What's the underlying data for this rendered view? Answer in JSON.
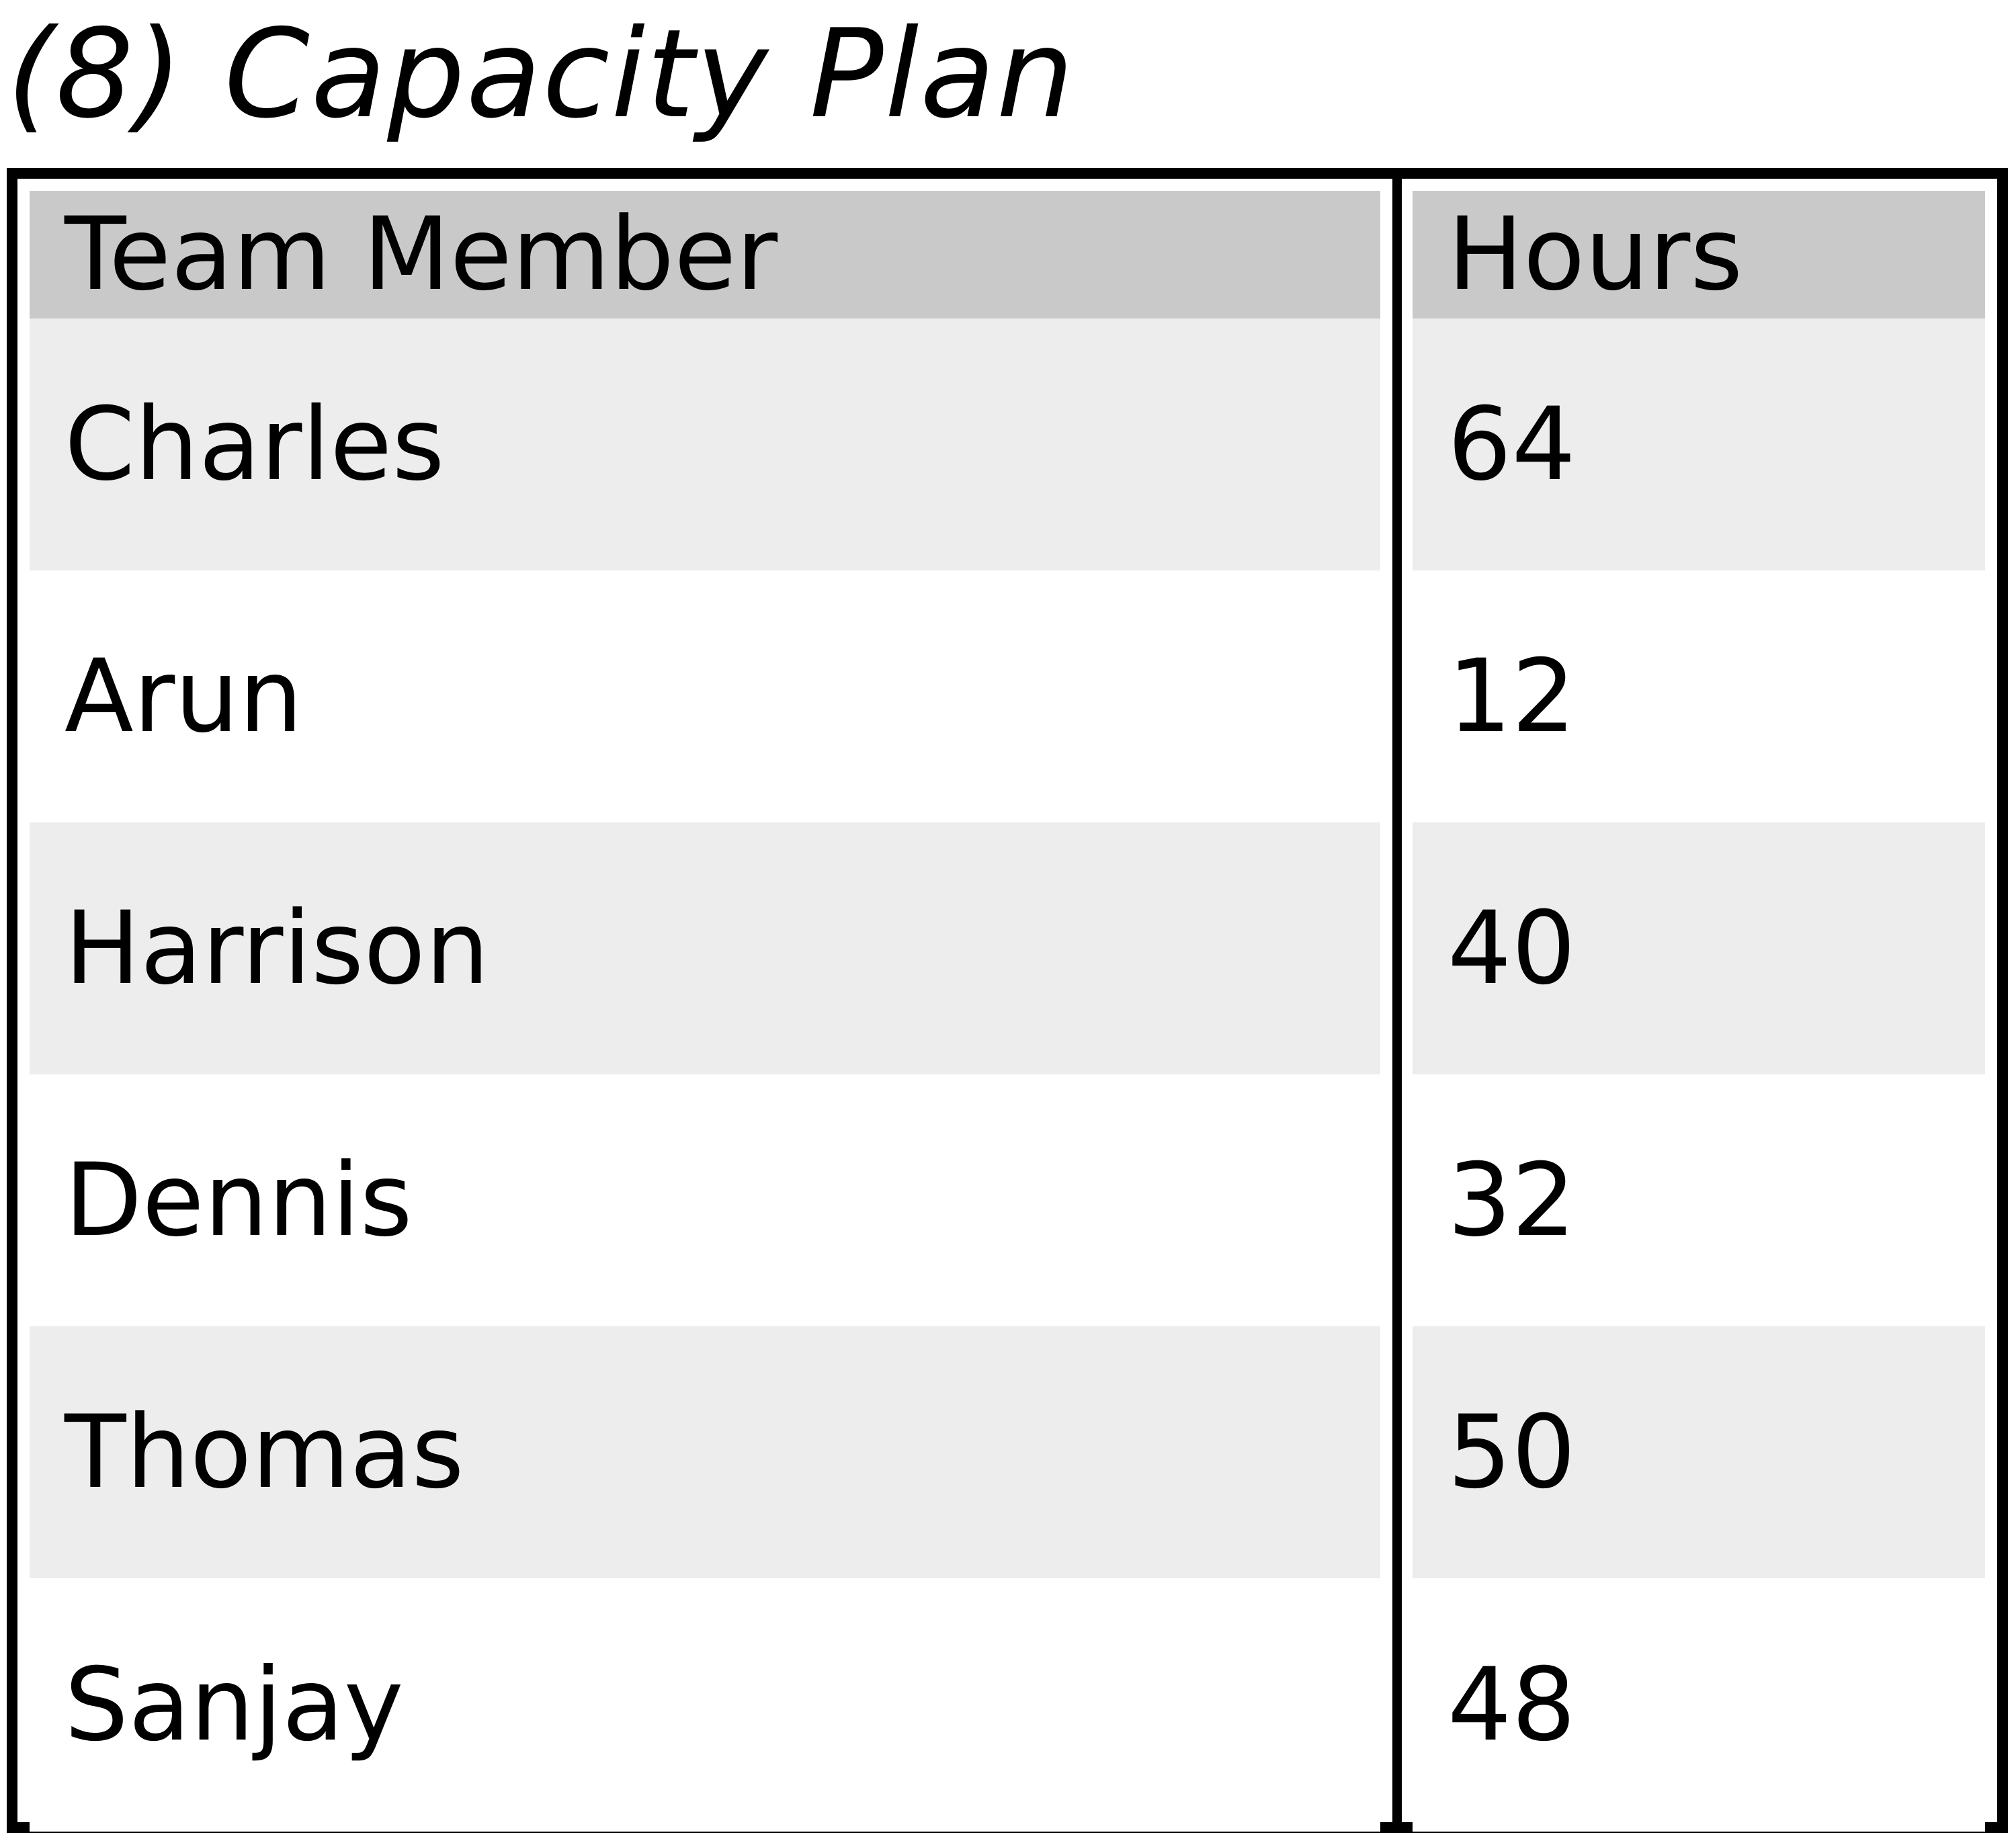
{
  "title": "(8) Capacity Plan",
  "table": {
    "columns": [
      "Team Member",
      "Hours"
    ],
    "rows": [
      {
        "member": "Charles",
        "hours": "64"
      },
      {
        "member": "Arun",
        "hours": "12"
      },
      {
        "member": "Harrison",
        "hours": "40"
      },
      {
        "member": "Dennis",
        "hours": "32"
      },
      {
        "member": "Thomas",
        "hours": "50"
      },
      {
        "member": "Sanjay",
        "hours": "48"
      }
    ]
  },
  "colors": {
    "header_bg": "#c9c9c9",
    "row_alt_bg": "#ededed",
    "row_bg": "#ffffff",
    "border": "#000000"
  }
}
